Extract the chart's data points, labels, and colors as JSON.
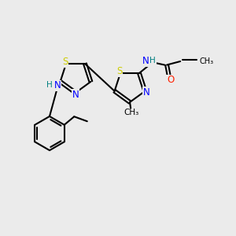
{
  "bg_color": "#ebebeb",
  "atom_colors": {
    "S": "#cccc00",
    "N": "#0000ff",
    "O": "#ff2000",
    "C": "#000000",
    "H": "#008080"
  },
  "bond_color": "#000000",
  "bond_width": 1.5,
  "figsize": [
    3.0,
    3.0
  ],
  "dpi": 100
}
